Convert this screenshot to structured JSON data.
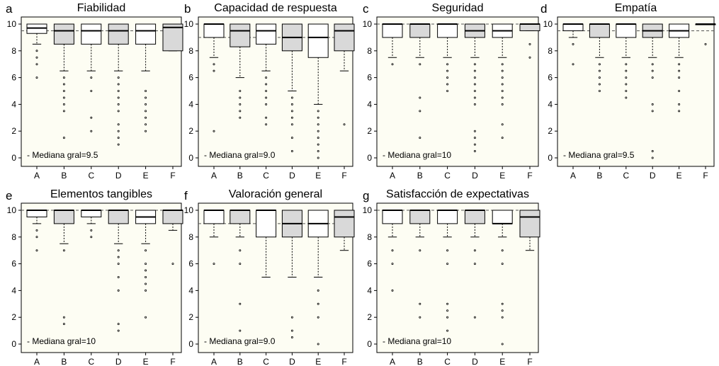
{
  "colors": {
    "panel_bg": "#fdfdf3",
    "box_gray": "#d9d9d9",
    "box_white": "#ffffff",
    "ink": "#000000",
    "median_line": "#555555"
  },
  "chart_data": [
    {
      "type": "boxplot",
      "letter": "a",
      "title": "Fiabilidad",
      "categories": [
        "A",
        "B",
        "C",
        "D",
        "E",
        "F"
      ],
      "ylim": [
        0,
        10
      ],
      "yticks": [
        0,
        2,
        4,
        6,
        8,
        10
      ],
      "overall_median": 9.5,
      "annotation": "- Mediana gral=9.5",
      "boxes": [
        {
          "cat": "A",
          "q1": 9.3,
          "med": 9.7,
          "q3": 10,
          "wlo": 8.5,
          "whi": 10,
          "out": [
            8,
            7.5,
            7,
            6
          ],
          "fill": "white"
        },
        {
          "cat": "B",
          "q1": 8.5,
          "med": 9.5,
          "q3": 10,
          "wlo": 6.5,
          "whi": 10,
          "out": [
            6,
            5.5,
            5,
            4.5,
            4,
            3.5,
            1.5
          ],
          "fill": "gray"
        },
        {
          "cat": "C",
          "q1": 8.5,
          "med": 9.5,
          "q3": 10,
          "wlo": 6.5,
          "whi": 10,
          "out": [
            6,
            5,
            3,
            2
          ],
          "fill": "white"
        },
        {
          "cat": "D",
          "q1": 8.5,
          "med": 9.5,
          "q3": 10,
          "wlo": 6.5,
          "whi": 10,
          "out": [
            6,
            5.5,
            5,
            4.5,
            4,
            3.5,
            2.5,
            2,
            1.5,
            1
          ],
          "fill": "gray"
        },
        {
          "cat": "E",
          "q1": 8.5,
          "med": 9.5,
          "q3": 10,
          "wlo": 6.5,
          "whi": 10,
          "out": [
            5,
            4.5,
            4,
            3.5,
            3,
            2.5,
            2
          ],
          "fill": "white"
        },
        {
          "cat": "F",
          "q1": 8,
          "med": 9.75,
          "q3": 10,
          "wlo": 8,
          "whi": 10,
          "out": [],
          "fill": "gray"
        }
      ]
    },
    {
      "type": "boxplot",
      "letter": "b",
      "title": "Capacidad de respuesta",
      "categories": [
        "A",
        "B",
        "C",
        "D",
        "E",
        "F"
      ],
      "ylim": [
        0,
        10
      ],
      "yticks": [
        0,
        2,
        4,
        6,
        8,
        10
      ],
      "overall_median": 9.0,
      "annotation": "- Mediana gral=9.0",
      "boxes": [
        {
          "cat": "A",
          "q1": 9,
          "med": 10,
          "q3": 10,
          "wlo": 7.5,
          "whi": 10,
          "out": [
            7,
            6.5,
            2
          ],
          "fill": "white"
        },
        {
          "cat": "B",
          "q1": 8.3,
          "med": 9.5,
          "q3": 10,
          "wlo": 6,
          "whi": 10,
          "out": [
            5,
            4.5,
            4,
            3.5,
            3
          ],
          "fill": "gray"
        },
        {
          "cat": "C",
          "q1": 8.5,
          "med": 9.5,
          "q3": 10,
          "wlo": 6.5,
          "whi": 10,
          "out": [
            6,
            5.5,
            5,
            4.5,
            4,
            3,
            2.5
          ],
          "fill": "white"
        },
        {
          "cat": "D",
          "q1": 8,
          "med": 9,
          "q3": 10,
          "wlo": 5,
          "whi": 10,
          "out": [
            4.5,
            4,
            3.5,
            3,
            2.5,
            1.5,
            0.5
          ],
          "fill": "gray"
        },
        {
          "cat": "E",
          "q1": 7.5,
          "med": 9,
          "q3": 10,
          "wlo": 4,
          "whi": 10,
          "out": [
            3.5,
            3,
            2.5,
            2,
            1.5,
            1,
            0.5,
            0
          ],
          "fill": "white"
        },
        {
          "cat": "F",
          "q1": 8,
          "med": 9.5,
          "q3": 10,
          "wlo": 6.5,
          "whi": 10,
          "out": [
            2.5
          ],
          "fill": "gray"
        }
      ]
    },
    {
      "type": "boxplot",
      "letter": "c",
      "title": "Seguridad",
      "categories": [
        "A",
        "B",
        "C",
        "D",
        "E",
        "F"
      ],
      "ylim": [
        0,
        10
      ],
      "yticks": [
        0,
        2,
        4,
        6,
        8,
        10
      ],
      "overall_median": 10,
      "annotation": "- Mediana gral=10",
      "boxes": [
        {
          "cat": "A",
          "q1": 9,
          "med": 10,
          "q3": 10,
          "wlo": 7.5,
          "whi": 10,
          "out": [
            7
          ],
          "fill": "white"
        },
        {
          "cat": "B",
          "q1": 9,
          "med": 10,
          "q3": 10,
          "wlo": 7.5,
          "whi": 10,
          "out": [
            7,
            4.5,
            3.5,
            1.5
          ],
          "fill": "gray"
        },
        {
          "cat": "C",
          "q1": 9,
          "med": 10,
          "q3": 10,
          "wlo": 7.5,
          "whi": 10,
          "out": [
            7,
            6.5,
            6,
            5.5,
            5
          ],
          "fill": "white"
        },
        {
          "cat": "D",
          "q1": 9,
          "med": 9.5,
          "q3": 10,
          "wlo": 7.5,
          "whi": 10,
          "out": [
            7,
            6.5,
            6,
            5.5,
            5,
            4.5,
            4,
            2,
            1.5,
            1,
            0.5
          ],
          "fill": "gray"
        },
        {
          "cat": "E",
          "q1": 9,
          "med": 9.5,
          "q3": 10,
          "wlo": 7.5,
          "whi": 10,
          "out": [
            7,
            6.5,
            6,
            5.5,
            5,
            4.5,
            4,
            2.5,
            1.5
          ],
          "fill": "white"
        },
        {
          "cat": "F",
          "q1": 9.5,
          "med": 10,
          "q3": 10,
          "wlo": 9.5,
          "whi": 10,
          "out": [
            8.5,
            7.5
          ],
          "fill": "gray"
        }
      ]
    },
    {
      "type": "boxplot",
      "letter": "d",
      "title": "Empatía",
      "categories": [
        "A",
        "B",
        "C",
        "D",
        "E",
        "F"
      ],
      "ylim": [
        0,
        10
      ],
      "yticks": [
        0,
        2,
        4,
        6,
        8,
        10
      ],
      "overall_median": 9.5,
      "annotation": "- Mediana gral=9.5",
      "boxes": [
        {
          "cat": "A",
          "q1": 9.5,
          "med": 10,
          "q3": 10,
          "wlo": 9,
          "whi": 10,
          "out": [
            8.5,
            7
          ],
          "fill": "white"
        },
        {
          "cat": "B",
          "q1": 9,
          "med": 10,
          "q3": 10,
          "wlo": 7.5,
          "whi": 10,
          "out": [
            7,
            6.5,
            6,
            5.5,
            5
          ],
          "fill": "gray"
        },
        {
          "cat": "C",
          "q1": 9,
          "med": 10,
          "q3": 10,
          "wlo": 7.5,
          "whi": 10,
          "out": [
            7,
            6.5,
            6,
            5.5,
            5,
            4.5
          ],
          "fill": "white"
        },
        {
          "cat": "D",
          "q1": 9,
          "med": 9.5,
          "q3": 10,
          "wlo": 7.5,
          "whi": 10,
          "out": [
            7,
            6.5,
            6,
            4,
            3.5,
            0.5,
            0
          ],
          "fill": "gray"
        },
        {
          "cat": "E",
          "q1": 9,
          "med": 9.5,
          "q3": 10,
          "wlo": 7.5,
          "whi": 10,
          "out": [
            7,
            6.5,
            6,
            5,
            4,
            3.5
          ],
          "fill": "white"
        },
        {
          "cat": "F",
          "q1": 10,
          "med": 10,
          "q3": 10,
          "wlo": 10,
          "whi": 10,
          "out": [
            8.5
          ],
          "fill": "gray"
        }
      ]
    },
    {
      "type": "boxplot",
      "letter": "e",
      "title": "Elementos tangibles",
      "categories": [
        "A",
        "B",
        "C",
        "D",
        "E",
        "F"
      ],
      "ylim": [
        0,
        10
      ],
      "yticks": [
        0,
        2,
        4,
        6,
        8,
        10
      ],
      "overall_median": 10,
      "annotation": "- Mediana gral=10",
      "boxes": [
        {
          "cat": "A",
          "q1": 9.5,
          "med": 10,
          "q3": 10,
          "wlo": 9,
          "whi": 10,
          "out": [
            8.5,
            8,
            7
          ],
          "fill": "white"
        },
        {
          "cat": "B",
          "q1": 9,
          "med": 10,
          "q3": 10,
          "wlo": 7.5,
          "whi": 10,
          "out": [
            7,
            2,
            1.5
          ],
          "fill": "gray"
        },
        {
          "cat": "C",
          "q1": 9.5,
          "med": 10,
          "q3": 10,
          "wlo": 9,
          "whi": 10,
          "out": [
            8.5,
            8
          ],
          "fill": "white"
        },
        {
          "cat": "D",
          "q1": 9,
          "med": 10,
          "q3": 10,
          "wlo": 7.5,
          "whi": 10,
          "out": [
            7,
            6.5,
            6,
            5,
            4,
            1.5,
            1
          ],
          "fill": "gray"
        },
        {
          "cat": "E",
          "q1": 9,
          "med": 9.5,
          "q3": 10,
          "wlo": 7.5,
          "whi": 10,
          "out": [
            7,
            6,
            5.5,
            5,
            4.5,
            4,
            2
          ],
          "fill": "white"
        },
        {
          "cat": "F",
          "q1": 9,
          "med": 10,
          "q3": 10,
          "wlo": 8.5,
          "whi": 10,
          "out": [
            6
          ],
          "fill": "gray"
        }
      ]
    },
    {
      "type": "boxplot",
      "letter": "f",
      "title": "Valoración general",
      "categories": [
        "A",
        "B",
        "C",
        "D",
        "E",
        "F"
      ],
      "ylim": [
        0,
        10
      ],
      "yticks": [
        0,
        2,
        4,
        6,
        8,
        10
      ],
      "overall_median": 9.0,
      "annotation": "- Mediana gral=9.0",
      "boxes": [
        {
          "cat": "A",
          "q1": 9,
          "med": 10,
          "q3": 10,
          "wlo": 8,
          "whi": 10,
          "out": [
            6
          ],
          "fill": "white"
        },
        {
          "cat": "B",
          "q1": 9,
          "med": 10,
          "q3": 10,
          "wlo": 8,
          "whi": 10,
          "out": [
            7,
            6,
            3,
            1
          ],
          "fill": "gray"
        },
        {
          "cat": "C",
          "q1": 8,
          "med": 10,
          "q3": 10,
          "wlo": 5,
          "whi": 10,
          "out": [],
          "fill": "white"
        },
        {
          "cat": "D",
          "q1": 8,
          "med": 9,
          "q3": 10,
          "wlo": 5,
          "whi": 10,
          "out": [
            2,
            1,
            0.5
          ],
          "fill": "gray"
        },
        {
          "cat": "E",
          "q1": 8,
          "med": 9,
          "q3": 10,
          "wlo": 5,
          "whi": 10,
          "out": [
            4,
            3,
            2,
            0
          ],
          "fill": "white"
        },
        {
          "cat": "F",
          "q1": 8,
          "med": 9.5,
          "q3": 10,
          "wlo": 7,
          "whi": 10,
          "out": [],
          "fill": "gray"
        }
      ]
    },
    {
      "type": "boxplot",
      "letter": "g",
      "title": "Satisfacción de expectativas",
      "categories": [
        "A",
        "B",
        "C",
        "D",
        "E",
        "F"
      ],
      "ylim": [
        0,
        10
      ],
      "yticks": [
        0,
        2,
        4,
        6,
        8,
        10
      ],
      "overall_median": 10,
      "annotation": "- Mediana gral=10",
      "boxes": [
        {
          "cat": "A",
          "q1": 9,
          "med": 10,
          "q3": 10,
          "wlo": 8,
          "whi": 10,
          "out": [
            7,
            6,
            4
          ],
          "fill": "white"
        },
        {
          "cat": "B",
          "q1": 9,
          "med": 10,
          "q3": 10,
          "wlo": 8,
          "whi": 10,
          "out": [
            7,
            3,
            2
          ],
          "fill": "gray"
        },
        {
          "cat": "C",
          "q1": 9,
          "med": 10,
          "q3": 10,
          "wlo": 8,
          "whi": 10,
          "out": [
            7,
            6,
            3,
            2.5,
            2,
            1
          ],
          "fill": "white"
        },
        {
          "cat": "D",
          "q1": 9,
          "med": 10,
          "q3": 10,
          "wlo": 8,
          "whi": 10,
          "out": [
            7,
            6,
            2
          ],
          "fill": "gray"
        },
        {
          "cat": "E",
          "q1": 9,
          "med": 9,
          "q3": 10,
          "wlo": 8,
          "whi": 10,
          "out": [
            7,
            6,
            3,
            2.5,
            2,
            0
          ],
          "fill": "white"
        },
        {
          "cat": "F",
          "q1": 8,
          "med": 9.5,
          "q3": 10,
          "wlo": 7,
          "whi": 10,
          "out": [],
          "fill": "gray"
        }
      ]
    }
  ]
}
